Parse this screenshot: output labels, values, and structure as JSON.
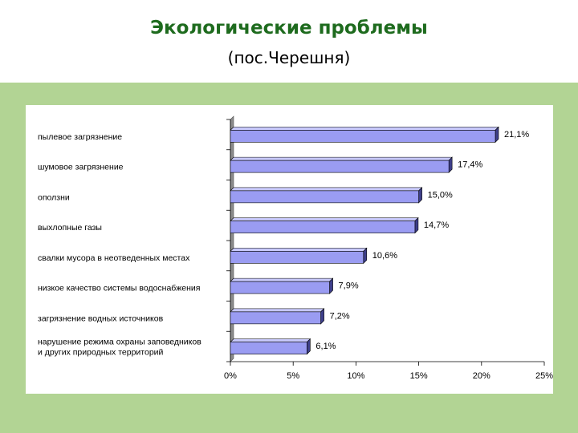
{
  "header": {
    "title": "Экологические проблемы",
    "subtitle": "(пос.Черешня)"
  },
  "colors": {
    "title": "#1e6b1e",
    "panel": "#b2d494",
    "bar_front": "#9a9cf2",
    "bar_top": "#c7c8fa",
    "bar_side": "#3e3f8a"
  },
  "chart_data": {
    "type": "bar",
    "orientation": "horizontal",
    "categories": [
      "пылевое загрязнение",
      "шумовое загрязнение",
      "оползни",
      "выхлопные газы",
      "свалки мусора в неотведенных местах",
      "низкое качество системы водоснабжения",
      "загрязнение водных источников",
      "нарушение режима охраны заповедников\nи других природных территорий"
    ],
    "values": [
      21.1,
      17.4,
      15.0,
      14.7,
      10.6,
      7.9,
      7.2,
      6.1
    ],
    "data_labels": [
      "21,1%",
      "17,4%",
      "15,0%",
      "14,7%",
      "10,6%",
      "7,9%",
      "7,2%",
      "6,1%"
    ],
    "xlim": [
      0,
      25
    ],
    "x_ticks": [
      "0%",
      "5%",
      "10%",
      "15%",
      "20%",
      "25%"
    ],
    "x_tick_values": [
      0,
      5,
      10,
      15,
      20,
      25
    ],
    "grid": false,
    "legend": "none"
  }
}
